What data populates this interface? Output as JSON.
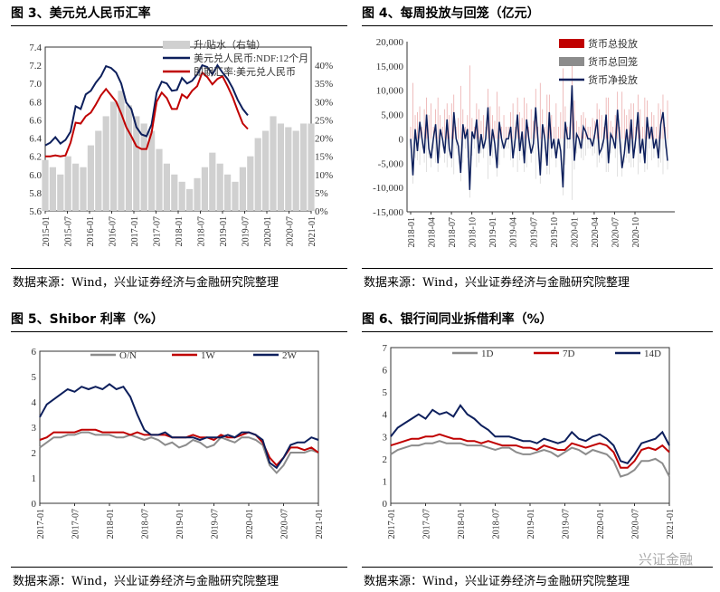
{
  "panels": [
    {
      "title": "图 3、美元兑人民币汇率",
      "source": "数据来源：Wind，兴业证券经济与金融研究院整理"
    },
    {
      "title": "图 4、每周投放与回笼（亿元）",
      "source": "数据来源：Wind，兴业证券经济与金融研究院整理"
    },
    {
      "title": "图 5、Shibor 利率（%）",
      "source": "数据来源：Wind，兴业证券经济与金融研究院整理"
    },
    {
      "title": "图 6、银行间同业拆借利率（%）",
      "source": "数据来源：Wind，兴业证券经济与金融研究院整理"
    }
  ],
  "watermark": "兴证金融",
  "colors": {
    "red": "#c00000",
    "navy": "#0d1f5c",
    "gray": "#8c8c8c",
    "lightgray": "#d0d0d0"
  },
  "chart_data": [
    {
      "type": "line",
      "title": "图 3、美元兑人民币汇率",
      "x_ticks": [
        "2015-01",
        "2015-07",
        "2016-01",
        "2016-07",
        "2017-01",
        "2017-07",
        "2018-01",
        "2018-07",
        "2019-01",
        "2019-07",
        "2020-01",
        "2020-07",
        "2021-01"
      ],
      "y_left": {
        "lim": [
          5.6,
          7.4
        ],
        "ticks": [
          "5.6",
          "5.8",
          "6.0",
          "6.2",
          "6.4",
          "6.6",
          "6.8",
          "7.0",
          "7.2",
          "7.4"
        ]
      },
      "y_right": {
        "lim": [
          0,
          45
        ],
        "ticks": [
          "0%",
          "5%",
          "10%",
          "15%",
          "20%",
          "25%",
          "30%",
          "35%",
          "40%"
        ]
      },
      "legend": [
        "升/贴水（右轴）",
        "美元兑人民币:NDF:12个月",
        "即期汇率:美元兑人民币"
      ],
      "legend_position": "top-right",
      "series": [
        {
          "name": "升/贴水（右轴）",
          "style": "bar",
          "axis": "right",
          "points": [
            [
              0,
              14
            ],
            [
              3,
              12
            ],
            [
              6,
              10
            ],
            [
              9,
              15
            ],
            [
              12,
              13
            ],
            [
              15,
              12
            ],
            [
              18,
              18
            ],
            [
              21,
              22
            ],
            [
              24,
              26
            ],
            [
              27,
              30
            ],
            [
              30,
              33
            ],
            [
              33,
              29
            ],
            [
              36,
              26
            ],
            [
              39,
              24
            ],
            [
              42,
              22
            ],
            [
              45,
              17
            ],
            [
              48,
              13
            ],
            [
              51,
              10
            ],
            [
              54,
              8
            ],
            [
              57,
              6
            ],
            [
              60,
              9
            ],
            [
              63,
              12
            ],
            [
              66,
              16
            ],
            [
              69,
              13
            ],
            [
              72,
              10
            ],
            [
              75,
              8
            ],
            [
              78,
              12
            ],
            [
              81,
              15
            ],
            [
              84,
              20
            ],
            [
              87,
              22
            ],
            [
              90,
              26
            ],
            [
              93,
              24
            ],
            [
              96,
              23
            ],
            [
              99,
              22
            ],
            [
              102,
              24
            ],
            [
              105,
              24
            ]
          ]
        },
        {
          "name": "美元兑人民币:NDF:12个月",
          "axis": "left",
          "points": [
            [
              0,
              6.32
            ],
            [
              2,
              6.35
            ],
            [
              4,
              6.41
            ],
            [
              6,
              6.34
            ],
            [
              8,
              6.38
            ],
            [
              10,
              6.47
            ],
            [
              12,
              6.75
            ],
            [
              14,
              6.72
            ],
            [
              16,
              6.88
            ],
            [
              18,
              6.92
            ],
            [
              20,
              7.01
            ],
            [
              22,
              7.08
            ],
            [
              24,
              7.19
            ],
            [
              26,
              7.17
            ],
            [
              28,
              7.12
            ],
            [
              30,
              7.0
            ],
            [
              32,
              6.79
            ],
            [
              34,
              6.72
            ],
            [
              36,
              6.52
            ],
            [
              38,
              6.44
            ],
            [
              40,
              6.42
            ],
            [
              42,
              6.55
            ],
            [
              44,
              6.9
            ],
            [
              46,
              7.02
            ],
            [
              48,
              7.0
            ],
            [
              50,
              6.92
            ],
            [
              52,
              6.93
            ],
            [
              54,
              7.06
            ],
            [
              56,
              7.0
            ],
            [
              58,
              7.03
            ],
            [
              60,
              7.1
            ],
            [
              62,
              7.2
            ],
            [
              64,
              7.18
            ],
            [
              66,
              7.1
            ],
            [
              68,
              7.2
            ],
            [
              70,
              7.12
            ],
            [
              72,
              7.05
            ],
            [
              74,
              6.95
            ],
            [
              76,
              6.82
            ],
            [
              78,
              6.72
            ],
            [
              80,
              6.65
            ]
          ]
        },
        {
          "name": "即期汇率:美元兑人民币",
          "axis": "left",
          "points": [
            [
              0,
              6.2
            ],
            [
              2,
              6.2
            ],
            [
              4,
              6.21
            ],
            [
              6,
              6.2
            ],
            [
              8,
              6.21
            ],
            [
              10,
              6.35
            ],
            [
              12,
              6.57
            ],
            [
              14,
              6.56
            ],
            [
              16,
              6.64
            ],
            [
              18,
              6.68
            ],
            [
              20,
              6.77
            ],
            [
              22,
              6.87
            ],
            [
              24,
              6.94
            ],
            [
              26,
              6.87
            ],
            [
              28,
              6.8
            ],
            [
              30,
              6.67
            ],
            [
              32,
              6.52
            ],
            [
              34,
              6.42
            ],
            [
              36,
              6.31
            ],
            [
              38,
              6.28
            ],
            [
              40,
              6.28
            ],
            [
              42,
              6.46
            ],
            [
              44,
              6.8
            ],
            [
              46,
              6.9
            ],
            [
              48,
              6.84
            ],
            [
              50,
              6.72
            ],
            [
              52,
              6.72
            ],
            [
              54,
              6.88
            ],
            [
              56,
              6.84
            ],
            [
              58,
              6.92
            ],
            [
              60,
              6.97
            ],
            [
              62,
              7.12
            ],
            [
              64,
              7.07
            ],
            [
              66,
              6.99
            ],
            [
              68,
              7.05
            ],
            [
              70,
              7.08
            ],
            [
              72,
              6.97
            ],
            [
              74,
              6.85
            ],
            [
              76,
              6.7
            ],
            [
              78,
              6.56
            ],
            [
              80,
              6.5
            ]
          ]
        }
      ]
    },
    {
      "type": "line",
      "title": "图 4、每周投放与回笼（亿元）",
      "x_ticks": [
        "2018-01",
        "2018-04",
        "2018-07",
        "2018-10",
        "2019-01",
        "2019-04",
        "2019-07",
        "2019-10",
        "2020-01",
        "2020-04",
        "2020-07",
        "2020-10"
      ],
      "ylim": [
        -15000,
        20000
      ],
      "y_ticks": [
        "-15,000",
        "-10,000",
        "-5,000",
        "0",
        "5,000",
        "10,000",
        "15,000",
        "20,000"
      ],
      "legend": [
        "货币总投放",
        "货币总回笼",
        "货币净投放"
      ],
      "legend_position": "top-right",
      "series": [
        {
          "name": "货币净投放",
          "values": [
            0,
            -7500,
            2000,
            -2500,
            3500,
            0,
            -3000,
            5000,
            -2000,
            -4000,
            0,
            3000,
            -5000,
            2000,
            0,
            -3000,
            4000,
            -2000,
            -4000,
            5500,
            0,
            -1500,
            -7000,
            3000,
            0,
            2000,
            -10500,
            1500,
            0,
            4000,
            -3000,
            1000,
            -2000,
            0,
            6500,
            -3500,
            2000,
            -1000,
            -6000,
            3500,
            0,
            -2000,
            0,
            0,
            2500,
            -4000,
            0,
            5000,
            -2500,
            1500,
            -5000,
            4000,
            0,
            -3000,
            -1000,
            6500,
            0,
            -7500,
            3000,
            0,
            -5500,
            5500,
            -2000,
            0,
            -4000,
            0,
            -2500,
            -10000,
            3500,
            0,
            0,
            11000,
            -4500,
            1000,
            0,
            -2000,
            2500,
            1500,
            0,
            0,
            -1500,
            1000,
            4000,
            -3000,
            -2000,
            0,
            5000,
            -5000,
            1000,
            0,
            -2000,
            6000,
            0,
            -6000,
            -3000,
            2000,
            -3000,
            4000,
            -4000,
            0,
            5500,
            -3000,
            0,
            -5000,
            4500,
            0,
            2500,
            -2000,
            0,
            -4000,
            3000,
            5500,
            0,
            -4500
          ]
        }
      ]
    },
    {
      "type": "line",
      "title": "图 5、Shibor 利率（%）",
      "x_ticks": [
        "2017-01",
        "2017-07",
        "2018-01",
        "2018-07",
        "2019-01",
        "2019-07",
        "2020-01",
        "2020-07",
        "2021-01"
      ],
      "ylim": [
        0,
        6
      ],
      "y_ticks": [
        "0",
        "1",
        "2",
        "3",
        "4",
        "5",
        "6"
      ],
      "legend": [
        "O/N",
        "1W",
        "2W"
      ],
      "legend_position": "top",
      "series": [
        {
          "name": "O/N",
          "values": [
            2.2,
            2.4,
            2.6,
            2.6,
            2.7,
            2.7,
            2.8,
            2.8,
            2.7,
            2.7,
            2.7,
            2.6,
            2.6,
            2.7,
            2.6,
            2.5,
            2.6,
            2.5,
            2.3,
            2.4,
            2.2,
            2.3,
            2.5,
            2.4,
            2.2,
            2.3,
            2.6,
            2.5,
            2.4,
            2.6,
            2.6,
            2.5,
            2.3,
            1.5,
            1.2,
            1.5,
            2.0,
            2.0,
            2.0,
            2.1,
            2.0
          ]
        },
        {
          "name": "1W",
          "values": [
            2.5,
            2.6,
            2.8,
            2.8,
            2.8,
            2.8,
            2.9,
            2.9,
            2.9,
            2.8,
            2.8,
            2.8,
            2.8,
            2.7,
            2.8,
            2.7,
            2.7,
            2.7,
            2.7,
            2.6,
            2.6,
            2.6,
            2.7,
            2.6,
            2.6,
            2.5,
            2.7,
            2.6,
            2.6,
            2.7,
            2.8,
            2.7,
            2.4,
            1.8,
            1.5,
            1.8,
            2.2,
            2.2,
            2.1,
            2.2,
            2.0
          ]
        },
        {
          "name": "2W",
          "values": [
            3.4,
            3.9,
            4.1,
            4.3,
            4.5,
            4.4,
            4.6,
            4.5,
            4.6,
            4.5,
            4.7,
            4.5,
            4.6,
            4.2,
            3.5,
            2.9,
            2.7,
            2.7,
            2.8,
            2.6,
            2.6,
            2.6,
            2.6,
            2.5,
            2.6,
            2.6,
            2.6,
            2.7,
            2.6,
            2.8,
            2.8,
            2.7,
            2.5,
            1.6,
            1.4,
            1.8,
            2.3,
            2.4,
            2.4,
            2.6,
            2.5
          ]
        }
      ]
    },
    {
      "type": "line",
      "title": "图 6、银行间同业拆借利率（%）",
      "x_ticks": [
        "2017-01",
        "2017-07",
        "2018-01",
        "2018-07",
        "2019-01",
        "2019-07",
        "2020-01",
        "2020-07",
        "2021-01"
      ],
      "ylim": [
        0,
        7
      ],
      "y_ticks": [
        "0",
        "1",
        "2",
        "3",
        "4",
        "5",
        "6",
        "7"
      ],
      "legend": [
        "1D",
        "7D",
        "14D"
      ],
      "legend_position": "top",
      "series": [
        {
          "name": "1D",
          "values": [
            2.2,
            2.4,
            2.5,
            2.6,
            2.6,
            2.7,
            2.7,
            2.8,
            2.7,
            2.7,
            2.7,
            2.6,
            2.6,
            2.6,
            2.5,
            2.4,
            2.5,
            2.5,
            2.3,
            2.2,
            2.2,
            2.3,
            2.4,
            2.3,
            2.1,
            2.3,
            2.5,
            2.4,
            2.2,
            2.4,
            2.3,
            2.2,
            1.9,
            1.2,
            1.3,
            1.5,
            1.9,
            1.9,
            2.0,
            1.8,
            1.2
          ]
        },
        {
          "name": "7D",
          "values": [
            2.6,
            2.7,
            2.8,
            2.9,
            2.9,
            3.0,
            3.0,
            3.1,
            3.0,
            2.9,
            2.9,
            2.8,
            2.8,
            2.7,
            2.8,
            2.7,
            2.6,
            2.6,
            2.6,
            2.5,
            2.5,
            2.4,
            2.6,
            2.5,
            2.4,
            2.4,
            2.7,
            2.6,
            2.5,
            2.6,
            2.7,
            2.6,
            2.3,
            1.6,
            1.6,
            1.9,
            2.4,
            2.5,
            2.4,
            2.6,
            2.3
          ]
        },
        {
          "name": "14D",
          "values": [
            3.0,
            3.4,
            3.6,
            3.8,
            4.0,
            3.8,
            4.2,
            4.0,
            4.1,
            3.9,
            4.4,
            4.0,
            3.8,
            3.5,
            3.3,
            3.0,
            3.0,
            3.0,
            2.9,
            2.8,
            2.8,
            2.7,
            2.9,
            2.8,
            2.7,
            2.8,
            3.2,
            2.9,
            2.8,
            3.0,
            3.1,
            2.9,
            2.6,
            1.9,
            1.8,
            2.2,
            2.7,
            2.8,
            2.9,
            3.2,
            2.6
          ]
        }
      ]
    }
  ]
}
